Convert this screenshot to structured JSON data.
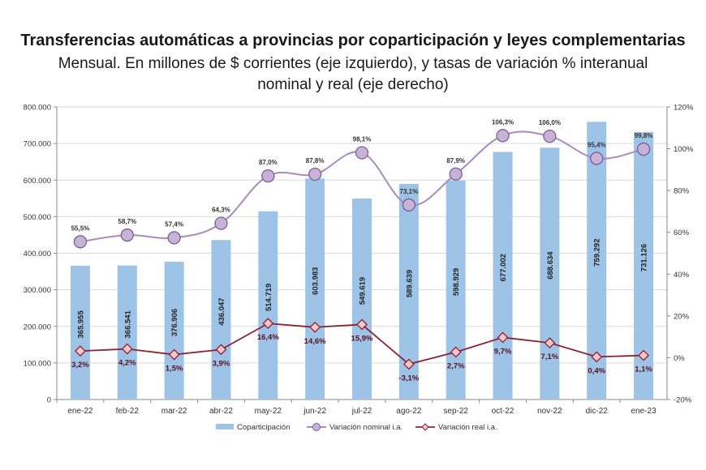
{
  "chart_data": {
    "type": "bar",
    "title": "Transferencias automáticas a provincias por coparticipación y leyes complementarias",
    "subtitle_line1": "Mensual. En millones de $ corrientes (eje izquierdo), y tasas de variación % interanual",
    "subtitle_line2": "nominal y real (eje derecho)",
    "categories": [
      "ene-22",
      "feb-22",
      "mar-22",
      "abr-22",
      "may-22",
      "jun-22",
      "jul-22",
      "ago-22",
      "sep-22",
      "oct-22",
      "nov-22",
      "dic-22",
      "ene-23"
    ],
    "ylim_left": [
      0,
      800000
    ],
    "ylim_right": [
      -20,
      120
    ],
    "left_ticks": [
      "0",
      "100.000",
      "200.000",
      "300.000",
      "400.000",
      "500.000",
      "600.000",
      "700.000",
      "800.000"
    ],
    "right_ticks": [
      "-20%",
      "0%",
      "20%",
      "40%",
      "60%",
      "80%",
      "100%",
      "120%"
    ],
    "series": [
      {
        "name": "Coparticipación",
        "axis": "left",
        "values": [
          365955,
          366541,
          376906,
          436047,
          514719,
          603983,
          549619,
          589639,
          598929,
          677002,
          688634,
          759292,
          731126
        ],
        "labels": [
          "365.955",
          "366.541",
          "376.906",
          "436.047",
          "514.719",
          "603.983",
          "549.619",
          "589.639",
          "598.929",
          "677.002",
          "688.634",
          "759.292",
          "731.126"
        ],
        "color": "#9dc3e6"
      },
      {
        "name": "Variación nominal i.a.",
        "axis": "right",
        "values": [
          55.5,
          58.7,
          57.4,
          64.3,
          87.0,
          87.8,
          98.1,
          73.1,
          87.9,
          106.3,
          106.0,
          95.4,
          99.8
        ],
        "labels": [
          "55,5%",
          "58,7%",
          "57,4%",
          "64,3%",
          "87,0%",
          "87,8%",
          "98,1%",
          "73,1%",
          "87,9%",
          "106,3%",
          "106,0%",
          "95,4%",
          "99,8%"
        ],
        "color": "#a98bbd"
      },
      {
        "name": "Variación real i.a.",
        "axis": "right",
        "values": [
          3.2,
          4.2,
          1.5,
          3.9,
          16.4,
          14.6,
          15.9,
          -3.1,
          2.7,
          9.7,
          7.1,
          0.4,
          1.1
        ],
        "labels": [
          "3,2%",
          "4,2%",
          "1,5%",
          "3,9%",
          "16,4%",
          "14,6%",
          "15,9%",
          "-3,1%",
          "2,7%",
          "9,7%",
          "7,1%",
          "0,4%",
          "1,1%"
        ],
        "color": "#8b2232"
      }
    ],
    "grid": true,
    "legend_position": "bottom"
  }
}
